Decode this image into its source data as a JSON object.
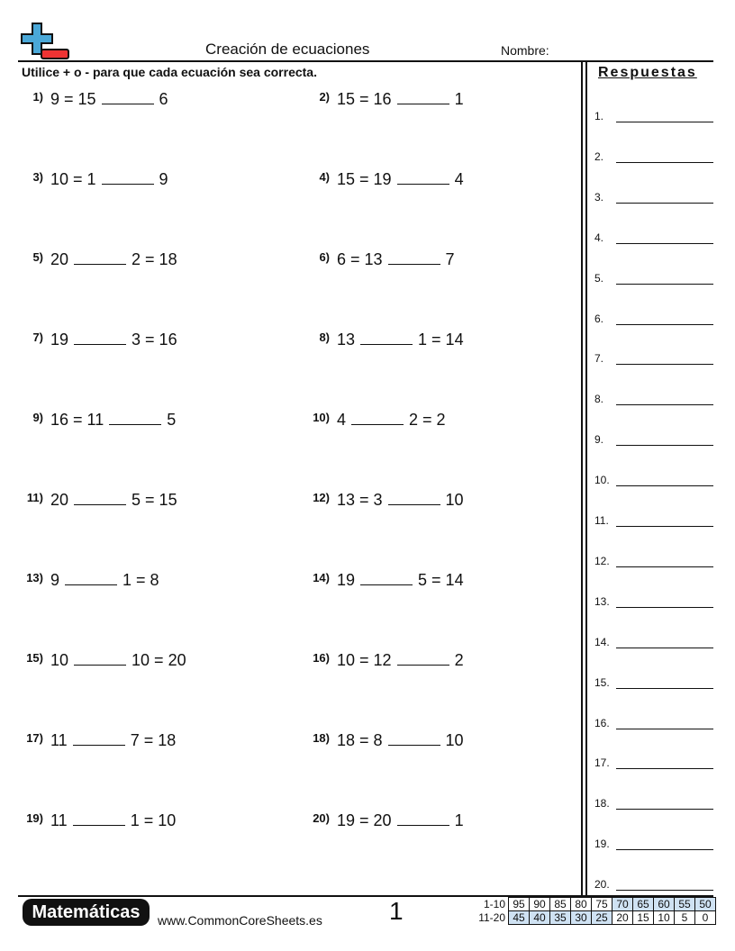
{
  "header": {
    "title": "Creación de ecuaciones",
    "name_label": "Nombre:"
  },
  "instructions": "Utilice + o - para que cada ecuación sea correcta.",
  "problems": [
    {
      "number": "1)",
      "left": "9 = 15",
      "right": "6"
    },
    {
      "number": "2)",
      "left": "15 = 16",
      "right": "1"
    },
    {
      "number": "3)",
      "left": "10 = 1",
      "right": "9"
    },
    {
      "number": "4)",
      "left": "15 = 19",
      "right": "4"
    },
    {
      "number": "5)",
      "left": "20",
      "right": "2 = 18"
    },
    {
      "number": "6)",
      "left": "6 = 13",
      "right": "7"
    },
    {
      "number": "7)",
      "left": "19",
      "right": "3 = 16"
    },
    {
      "number": "8)",
      "left": "13",
      "right": "1 = 14"
    },
    {
      "number": "9)",
      "left": "16 = 11",
      "right": "5"
    },
    {
      "number": "10)",
      "left": "4",
      "right": "2 = 2"
    },
    {
      "number": "11)",
      "left": "20",
      "right": "5 = 15"
    },
    {
      "number": "12)",
      "left": "13 = 3",
      "right": "10"
    },
    {
      "number": "13)",
      "left": "9",
      "right": "1 = 8"
    },
    {
      "number": "14)",
      "left": "19",
      "right": "5 = 14"
    },
    {
      "number": "15)",
      "left": "10",
      "right": "10 = 20"
    },
    {
      "number": "16)",
      "left": "10 = 12",
      "right": "2"
    },
    {
      "number": "17)",
      "left": "11",
      "right": "7 = 18"
    },
    {
      "number": "18)",
      "left": "18 = 8",
      "right": "10"
    },
    {
      "number": "19)",
      "left": "11",
      "right": "1 = 10"
    },
    {
      "number": "20)",
      "left": "19 = 20",
      "right": "1"
    }
  ],
  "answers": {
    "title": "Respuestas",
    "labels": [
      "1.",
      "2.",
      "3.",
      "4.",
      "5.",
      "6.",
      "7.",
      "8.",
      "9.",
      "10.",
      "11.",
      "12.",
      "13.",
      "14.",
      "15.",
      "16.",
      "17.",
      "18.",
      "19.",
      "20."
    ]
  },
  "footer": {
    "brand": "Matemáticas",
    "url": "www.CommonCoreSheets.es",
    "page": "1",
    "score_rows": [
      {
        "label": "1-10",
        "scores": [
          95,
          90,
          85,
          80,
          75,
          70,
          65,
          60,
          55,
          50
        ]
      },
      {
        "label": "11-20",
        "scores": [
          45,
          40,
          35,
          30,
          25,
          20,
          15,
          10,
          5,
          0
        ]
      }
    ]
  }
}
